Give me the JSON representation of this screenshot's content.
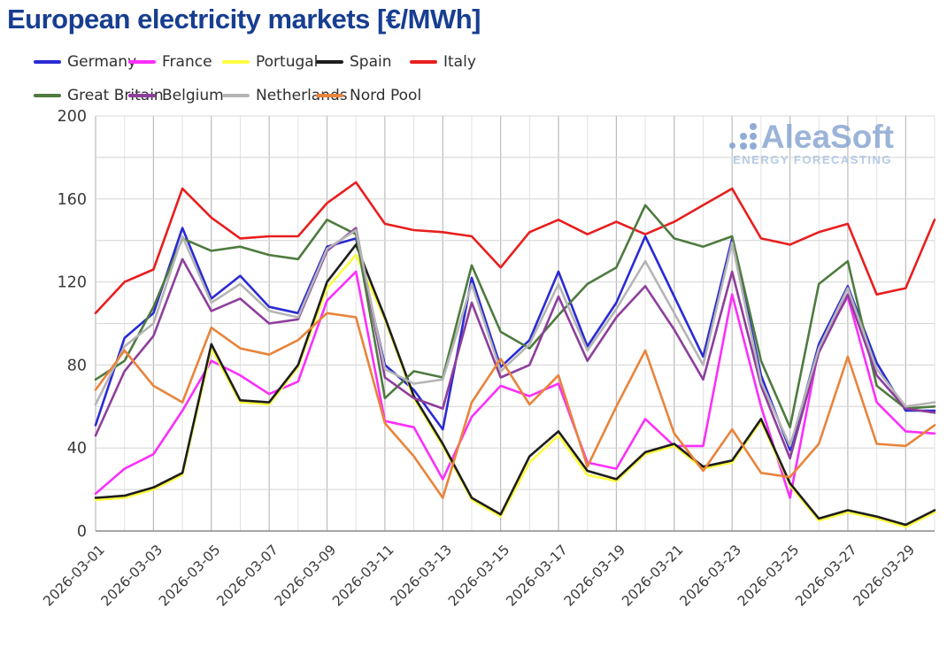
{
  "title": "European electricity markets [€/MWh]",
  "logo": {
    "name": "AleaSoft",
    "tagline": "ENERGY FORECASTING"
  },
  "chart_data": {
    "type": "line",
    "title": "European electricity markets [€/MWh]",
    "xlabel": "",
    "ylabel": "",
    "ylim": [
      0,
      200
    ],
    "yticks": [
      0,
      40,
      80,
      120,
      160,
      200
    ],
    "grid": true,
    "legend_position": "top",
    "x_label_every": 2,
    "x": [
      "2026-03-01",
      "2026-03-02",
      "2026-03-03",
      "2026-03-04",
      "2026-03-05",
      "2026-03-06",
      "2026-03-07",
      "2026-03-08",
      "2026-03-09",
      "2026-03-10",
      "2026-03-11",
      "2026-03-12",
      "2026-03-13",
      "2026-03-14",
      "2026-03-15",
      "2026-03-16",
      "2026-03-17",
      "2026-03-18",
      "2026-03-19",
      "2026-03-20",
      "2026-03-21",
      "2026-03-22",
      "2026-03-23",
      "2026-03-24",
      "2026-03-25",
      "2026-03-26",
      "2026-03-27",
      "2026-03-28",
      "2026-03-29",
      "2026-03-30"
    ],
    "series": [
      {
        "name": "Germany",
        "color": "#2a2ad4",
        "values": [
          51,
          93,
          105,
          146,
          112,
          123,
          108,
          105,
          137,
          141,
          80,
          68,
          49,
          122,
          79,
          92,
          125,
          89,
          110,
          142,
          113,
          84,
          141,
          75,
          39,
          90,
          118,
          81,
          58,
          58
        ]
      },
      {
        "name": "France",
        "color": "#fb2ffb",
        "values": [
          18,
          30,
          37,
          58,
          82,
          75,
          66,
          72,
          111,
          125,
          53,
          50,
          25,
          55,
          70,
          65,
          71,
          33,
          30,
          54,
          41,
          41,
          114,
          60,
          16,
          88,
          113,
          62,
          48,
          47
        ]
      },
      {
        "name": "Portugal",
        "color": "#fdfd42",
        "values": [
          15,
          16,
          20,
          27,
          88,
          62,
          61,
          79,
          117,
          133,
          102,
          64,
          41,
          15,
          7,
          33,
          46,
          27,
          24,
          37,
          41,
          30,
          33,
          53,
          22,
          5,
          9,
          6,
          2,
          9
        ]
      },
      {
        "name": "Spain",
        "color": "#1d1d1d",
        "values": [
          16,
          17,
          21,
          28,
          90,
          63,
          62,
          80,
          120,
          138,
          103,
          65,
          42,
          16,
          8,
          36,
          48,
          29,
          25,
          38,
          42,
          31,
          34,
          54,
          23,
          6,
          10,
          7,
          3,
          10
        ]
      },
      {
        "name": "Italy",
        "color": "#e81e1e",
        "values": [
          105,
          120,
          126,
          165,
          151,
          141,
          142,
          142,
          158,
          168,
          148,
          145,
          144,
          142,
          127,
          144,
          150,
          143,
          149,
          143,
          149,
          157,
          165,
          141,
          138,
          144,
          148,
          114,
          117,
          150
        ]
      },
      {
        "name": "Great Britain",
        "color": "#4e7b3f",
        "values": [
          73,
          82,
          108,
          141,
          135,
          137,
          133,
          131,
          150,
          143,
          64,
          77,
          74,
          128,
          96,
          88,
          104,
          119,
          127,
          157,
          141,
          137,
          142,
          82,
          50,
          119,
          130,
          70,
          59,
          60
        ]
      },
      {
        "name": "Belgium",
        "color": "#8e3e9c",
        "values": [
          46,
          77,
          94,
          131,
          106,
          112,
          100,
          102,
          135,
          146,
          74,
          64,
          59,
          110,
          74,
          80,
          113,
          82,
          103,
          118,
          97,
          73,
          125,
          70,
          35,
          86,
          114,
          75,
          59,
          57
        ]
      },
      {
        "name": "Netherlands",
        "color": "#b5b5b5",
        "values": [
          61,
          89,
          100,
          142,
          110,
          119,
          106,
          103,
          136,
          145,
          78,
          71,
          73,
          119,
          77,
          90,
          119,
          87,
          107,
          130,
          105,
          80,
          139,
          72,
          41,
          88,
          117,
          78,
          60,
          62
        ]
      },
      {
        "name": "Nord Pool",
        "color": "#e8843b",
        "values": [
          68,
          87,
          70,
          62,
          98,
          88,
          85,
          92,
          105,
          103,
          52,
          36,
          16,
          62,
          83,
          61,
          75,
          31,
          60,
          87,
          47,
          29,
          49,
          28,
          26,
          42,
          84,
          42,
          41,
          51
        ]
      }
    ]
  }
}
